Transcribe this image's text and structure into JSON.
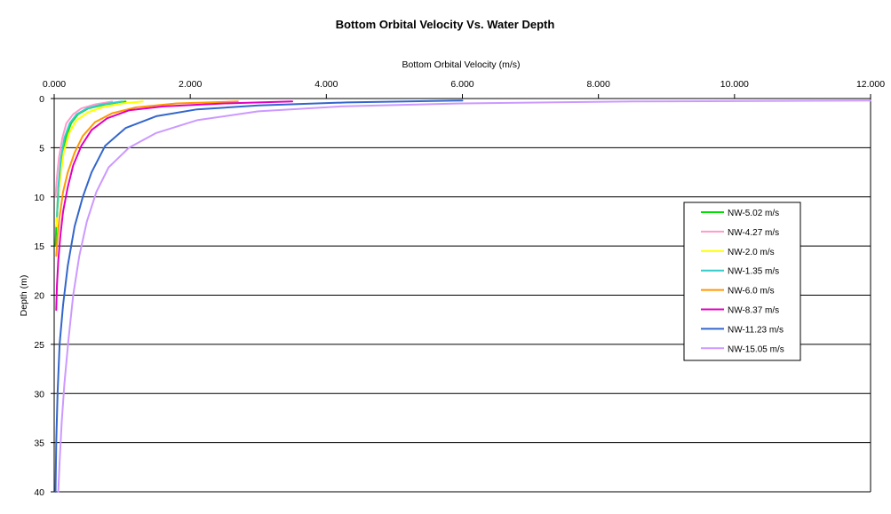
{
  "chart_data": {
    "type": "line",
    "title": "Bottom Orbital Velocity Vs. Water Depth",
    "xlabel": "Bottom Orbital Velocity (m/s)",
    "ylabel": "Depth (m)",
    "xlim": [
      0,
      12
    ],
    "ylim": [
      0,
      40
    ],
    "y_inverted": true,
    "x_axis_position": "top",
    "x_ticks": [
      0,
      2,
      4,
      6,
      8,
      10,
      12
    ],
    "x_tick_labels": [
      "0.000",
      "2.000",
      "4.000",
      "6.000",
      "8.000",
      "10.000",
      "12.000"
    ],
    "y_ticks": [
      0,
      5,
      10,
      15,
      20,
      25,
      30,
      35,
      40
    ],
    "y_tick_labels": [
      "0",
      "5",
      "10",
      "15",
      "20",
      "25",
      "30",
      "35",
      "40"
    ],
    "grid": "horizontal",
    "legend_position": "right",
    "series": [
      {
        "name": "NW-5.02 m/s",
        "color": "#00e000",
        "x": [
          1.05,
          0.75,
          0.5,
          0.35,
          0.25,
          0.17,
          0.12,
          0.08,
          0.05,
          0.03,
          0.02
        ],
        "y": [
          0.3,
          0.6,
          1.0,
          1.6,
          2.5,
          4.0,
          6.0,
          8.5,
          11.0,
          13.0,
          15.0
        ]
      },
      {
        "name": "NW-4.27 m/s",
        "color": "#ff99cc",
        "x": [
          0.85,
          0.6,
          0.4,
          0.28,
          0.18,
          0.12,
          0.07,
          0.04,
          0.02
        ],
        "y": [
          0.3,
          0.6,
          1.0,
          1.6,
          2.5,
          4.0,
          6.0,
          8.0,
          10.0
        ]
      },
      {
        "name": "NW-2.0 m/s",
        "color": "#ffff00",
        "x": [
          1.3,
          1.0,
          0.7,
          0.5,
          0.33,
          0.22,
          0.14,
          0.09,
          0.05,
          0.03
        ],
        "y": [
          0.3,
          0.5,
          0.9,
          1.4,
          2.2,
          3.5,
          5.5,
          8.0,
          10.5,
          13.0
        ]
      },
      {
        "name": "NW-1.35 m/s",
        "color": "#33cccc",
        "x": [
          1.0,
          0.7,
          0.48,
          0.33,
          0.23,
          0.15,
          0.1,
          0.06,
          0.04
        ],
        "y": [
          0.3,
          0.6,
          1.0,
          1.6,
          2.5,
          4.0,
          6.0,
          9.0,
          12.0
        ]
      },
      {
        "name": "NW-6.0 m/s",
        "color": "#ff9900",
        "x": [
          2.7,
          1.8,
          1.2,
          0.85,
          0.6,
          0.42,
          0.3,
          0.2,
          0.13,
          0.08,
          0.05,
          0.03
        ],
        "y": [
          0.3,
          0.5,
          0.9,
          1.5,
          2.4,
          3.8,
          5.5,
          7.5,
          9.5,
          12.0,
          14.0,
          16.0
        ]
      },
      {
        "name": "NW-8.37 m/s",
        "color": "#e000c0",
        "x": [
          3.5,
          2.5,
          1.6,
          1.1,
          0.78,
          0.55,
          0.4,
          0.28,
          0.2,
          0.13,
          0.09,
          0.06,
          0.04,
          0.03
        ],
        "y": [
          0.3,
          0.5,
          0.8,
          1.2,
          2.0,
          3.2,
          4.8,
          6.8,
          9.0,
          11.5,
          14.0,
          16.5,
          19.0,
          21.5
        ]
      },
      {
        "name": "NW-11.23 m/s",
        "color": "#3366cc",
        "x": [
          6.0,
          4.3,
          3.0,
          2.1,
          1.5,
          1.05,
          0.75,
          0.55,
          0.42,
          0.3,
          0.2,
          0.13,
          0.08,
          0.05,
          0.03,
          0.02
        ],
        "y": [
          0.2,
          0.4,
          0.7,
          1.1,
          1.8,
          3.0,
          4.8,
          7.5,
          10.0,
          13.0,
          17.0,
          21.0,
          25.0,
          30.0,
          35.0,
          40.0
        ]
      },
      {
        "name": "NW-15.05 m/s",
        "color": "#cc99ff",
        "x": [
          12.0,
          8.5,
          6.0,
          4.2,
          3.0,
          2.1,
          1.5,
          1.1,
          0.8,
          0.62,
          0.48,
          0.37,
          0.28,
          0.21,
          0.15,
          0.11,
          0.08,
          0.06
        ],
        "y": [
          0.2,
          0.3,
          0.5,
          0.8,
          1.3,
          2.2,
          3.5,
          5.0,
          7.0,
          9.5,
          12.5,
          16.0,
          20.0,
          24.5,
          29.0,
          33.0,
          37.0,
          40.0
        ]
      }
    ]
  }
}
